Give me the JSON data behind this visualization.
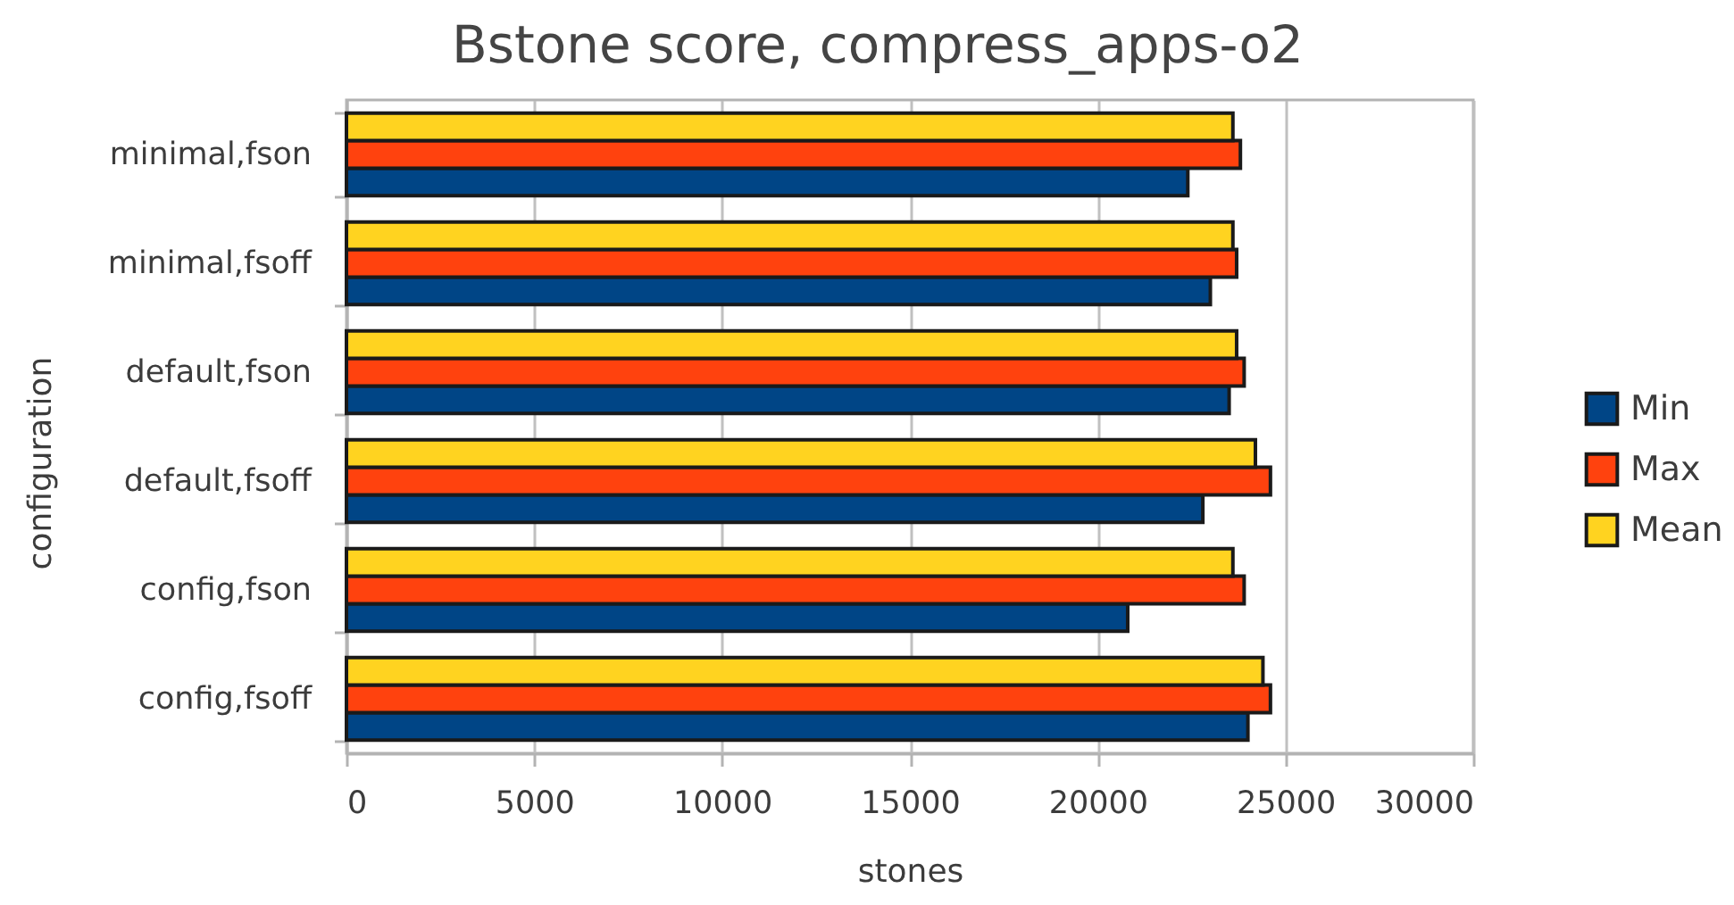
{
  "chart_data": {
    "type": "bar",
    "title": "Bstone score, compress_apps-o2",
    "xlabel": "stones",
    "ylabel": "configuration",
    "orientation": "horizontal",
    "categories": [
      "minimal,fson",
      "minimal,fsoff",
      "default,fson",
      "default,fsoff",
      "config,fson",
      "config,fsoff"
    ],
    "series": [
      {
        "name": "Min",
        "color": "#004586",
        "values": [
          22400,
          23000,
          23500,
          22800,
          20800,
          24000
        ]
      },
      {
        "name": "Max",
        "color": "#ff420e",
        "values": [
          23800,
          23700,
          23900,
          24600,
          23900,
          24600
        ]
      },
      {
        "name": "Mean",
        "color": "#ffd320",
        "values": [
          23600,
          23600,
          23700,
          24200,
          23600,
          24400
        ]
      }
    ],
    "xlim": [
      0,
      30000
    ],
    "xticks": [
      0,
      5000,
      10000,
      15000,
      20000,
      25000,
      30000
    ],
    "grid": "x",
    "legend": "right"
  }
}
